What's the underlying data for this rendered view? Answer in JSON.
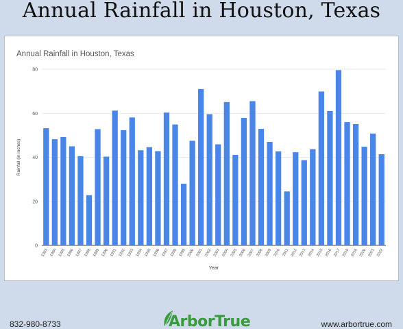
{
  "page": {
    "title": "Annual Rainfall in Houston, Texas",
    "phone": "832-980-8733",
    "website": "www.arbortrue.com",
    "brand": "ArborTrue",
    "brand_color": "#3a9a3e",
    "background_color": "#cfdaea"
  },
  "chart_data": {
    "type": "bar",
    "title": "Annual Rainfall in Houston, Texas",
    "xlabel": "Year",
    "ylabel": "Rainfall (in inches)",
    "ylim": [
      0,
      80
    ],
    "yticks": [
      0,
      20,
      40,
      60,
      80
    ],
    "grid": true,
    "bar_color": "#4a86e8",
    "categories": [
      "1983",
      "1984",
      "1985",
      "1986",
      "1987",
      "1988",
      "1989",
      "1990",
      "1991",
      "1992",
      "1993",
      "1994",
      "1995",
      "1996",
      "1997",
      "1998",
      "1999",
      "2000",
      "2001",
      "2002",
      "2003",
      "2004",
      "2005",
      "2006",
      "2007",
      "2008",
      "2009",
      "2010",
      "2011",
      "2012",
      "2013",
      "2014",
      "2015",
      "2016",
      "2017",
      "2018",
      "2019",
      "2020",
      "2021",
      "2022"
    ],
    "values": [
      53.2,
      48.2,
      49.2,
      45.0,
      40.5,
      22.8,
      52.8,
      40.3,
      61.2,
      52.3,
      58.1,
      43.2,
      44.6,
      42.8,
      60.3,
      54.9,
      28.0,
      47.5,
      71.0,
      59.6,
      45.9,
      65.1,
      41.1,
      57.9,
      65.5,
      52.9,
      47.0,
      42.7,
      24.5,
      42.3,
      38.7,
      43.7,
      69.9,
      61.0,
      79.6,
      56.0,
      55.1,
      44.8,
      50.8,
      41.4
    ]
  }
}
